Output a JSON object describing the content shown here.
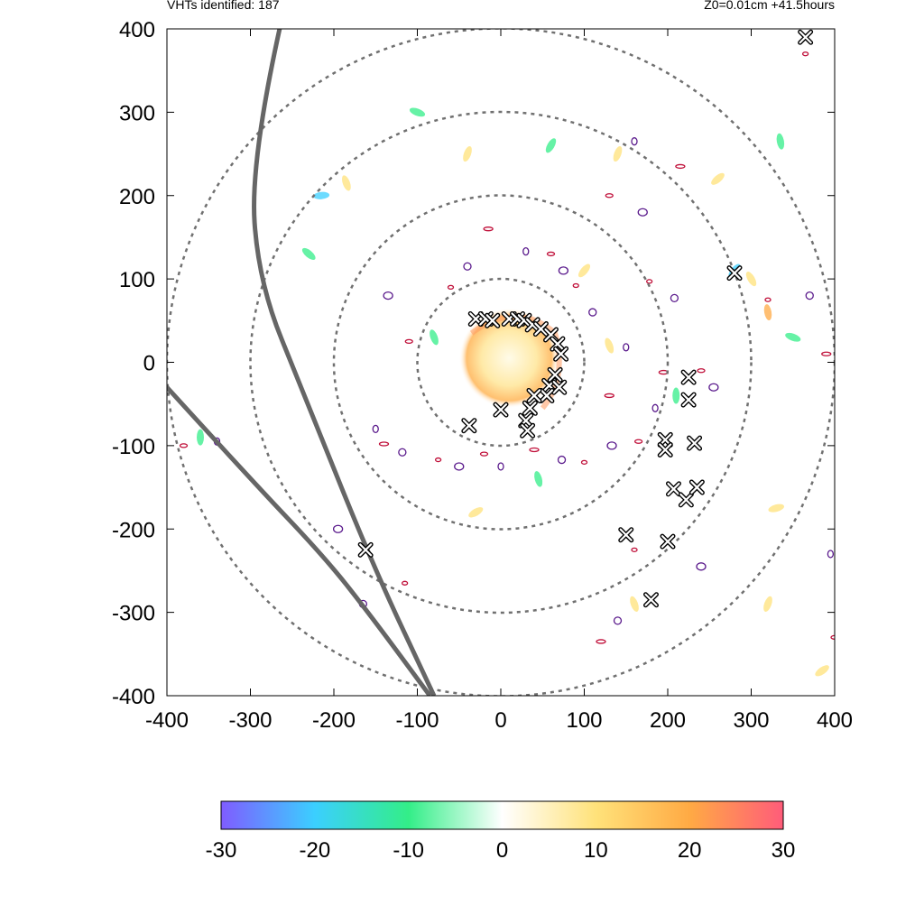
{
  "header": {
    "left_text": "VHTs identified: 187",
    "right_text": "Z0=0.01cm  +41.5hours"
  },
  "chart_data": {
    "type": "scatter",
    "title": "",
    "xlabel": "",
    "ylabel": "",
    "xlim": [
      -400,
      400
    ],
    "ylim": [
      -400,
      400
    ],
    "xticks": [
      -400,
      -300,
      -200,
      -100,
      0,
      100,
      200,
      300,
      400
    ],
    "yticks": [
      -400,
      -300,
      -200,
      -100,
      0,
      100,
      200,
      300,
      400
    ],
    "grid": false,
    "range_rings": [
      100,
      200,
      300,
      400
    ],
    "colorbar": {
      "min": -30,
      "max": 30,
      "ticks": [
        -30,
        -20,
        -10,
        0,
        10,
        20,
        30
      ],
      "colors": [
        "#7f5cff",
        "#3bcfff",
        "#33ee88",
        "#ffffff",
        "#ffe27a",
        "#ffaa44",
        "#ff5c7a"
      ]
    },
    "vht_markers": [
      {
        "x": -30,
        "y": 52
      },
      {
        "x": -18,
        "y": 52
      },
      {
        "x": -10,
        "y": 50
      },
      {
        "x": 10,
        "y": 52
      },
      {
        "x": 20,
        "y": 52
      },
      {
        "x": 28,
        "y": 50
      },
      {
        "x": 38,
        "y": 45
      },
      {
        "x": 48,
        "y": 40
      },
      {
        "x": 60,
        "y": 33
      },
      {
        "x": 68,
        "y": 22
      },
      {
        "x": 72,
        "y": 10
      },
      {
        "x": 65,
        "y": -15
      },
      {
        "x": 58,
        "y": -28
      },
      {
        "x": 70,
        "y": -30
      },
      {
        "x": 55,
        "y": -40
      },
      {
        "x": 40,
        "y": -40
      },
      {
        "x": 35,
        "y": -55
      },
      {
        "x": 30,
        "y": -70
      },
      {
        "x": 32,
        "y": -82
      },
      {
        "x": 0,
        "y": -57
      },
      {
        "x": -38,
        "y": -76
      },
      {
        "x": 225,
        "y": -18
      },
      {
        "x": 225,
        "y": -45
      },
      {
        "x": 197,
        "y": -93
      },
      {
        "x": 197,
        "y": -105
      },
      {
        "x": 232,
        "y": -97
      },
      {
        "x": 207,
        "y": -152
      },
      {
        "x": 222,
        "y": -165
      },
      {
        "x": 235,
        "y": -150
      },
      {
        "x": 200,
        "y": -215
      },
      {
        "x": 150,
        "y": -207
      },
      {
        "x": 180,
        "y": -285
      },
      {
        "x": 280,
        "y": 107
      },
      {
        "x": 365,
        "y": 390
      },
      {
        "x": -162,
        "y": -225
      }
    ],
    "contour_blobs": [
      {
        "x": 178,
        "y": 97
      },
      {
        "x": 208,
        "y": 77
      },
      {
        "x": 195,
        "y": -12
      },
      {
        "x": 185,
        "y": -55
      },
      {
        "x": 165,
        "y": -95
      },
      {
        "x": 133,
        "y": -100
      },
      {
        "x": 100,
        "y": -120
      },
      {
        "x": 73,
        "y": -117
      },
      {
        "x": 40,
        "y": -105
      },
      {
        "x": 0,
        "y": -125
      },
      {
        "x": -20,
        "y": -110
      },
      {
        "x": -50,
        "y": -125
      },
      {
        "x": -75,
        "y": -117
      },
      {
        "x": -118,
        "y": -108
      },
      {
        "x": -140,
        "y": -98
      },
      {
        "x": -150,
        "y": -80
      },
      {
        "x": -110,
        "y": 25
      },
      {
        "x": -135,
        "y": 80
      },
      {
        "x": -60,
        "y": 90
      },
      {
        "x": -40,
        "y": 115
      },
      {
        "x": -15,
        "y": 160
      },
      {
        "x": 30,
        "y": 133
      },
      {
        "x": 60,
        "y": 130
      },
      {
        "x": 75,
        "y": 110
      },
      {
        "x": 90,
        "y": 92
      },
      {
        "x": 110,
        "y": 60
      },
      {
        "x": 130,
        "y": -40
      },
      {
        "x": 150,
        "y": 18
      },
      {
        "x": 240,
        "y": -10
      },
      {
        "x": 255,
        "y": -30
      },
      {
        "x": 320,
        "y": 75
      },
      {
        "x": 370,
        "y": 80
      },
      {
        "x": 390,
        "y": 10
      },
      {
        "x": 395,
        "y": -230
      },
      {
        "x": 400,
        "y": -330
      },
      {
        "x": 240,
        "y": -245
      },
      {
        "x": 160,
        "y": -225
      },
      {
        "x": 140,
        "y": -310
      },
      {
        "x": 120,
        "y": -335
      },
      {
        "x": -340,
        "y": -95
      },
      {
        "x": -380,
        "y": -100
      },
      {
        "x": -195,
        "y": -200
      },
      {
        "x": -115,
        "y": -265
      },
      {
        "x": -165,
        "y": -290
      },
      {
        "x": 215,
        "y": 235
      },
      {
        "x": 160,
        "y": 265
      },
      {
        "x": 130,
        "y": 200
      },
      {
        "x": 170,
        "y": 180
      },
      {
        "x": 365,
        "y": 370
      }
    ],
    "color_patches": [
      {
        "x": 280,
        "y": 110,
        "v": -20
      },
      {
        "x": 300,
        "y": 100,
        "v": 15
      },
      {
        "x": 320,
        "y": 60,
        "v": 20
      },
      {
        "x": 350,
        "y": 30,
        "v": -12
      },
      {
        "x": -215,
        "y": 200,
        "v": -15
      },
      {
        "x": -185,
        "y": 215,
        "v": 12
      },
      {
        "x": -100,
        "y": 300,
        "v": -10
      },
      {
        "x": -40,
        "y": 250,
        "v": 10
      },
      {
        "x": 60,
        "y": 260,
        "v": -8
      },
      {
        "x": 140,
        "y": 250,
        "v": 10
      },
      {
        "x": 260,
        "y": 220,
        "v": 8
      },
      {
        "x": 335,
        "y": 265,
        "v": -8
      },
      {
        "x": 210,
        "y": -40,
        "v": -12
      },
      {
        "x": 160,
        "y": -290,
        "v": 15
      },
      {
        "x": 385,
        "y": -370,
        "v": 12
      },
      {
        "x": 330,
        "y": -175,
        "v": 10
      },
      {
        "x": -360,
        "y": -90,
        "v": -10
      },
      {
        "x": 45,
        "y": -140,
        "v": -10
      },
      {
        "x": -30,
        "y": -180,
        "v": 8
      },
      {
        "x": 320,
        "y": -290,
        "v": 8
      },
      {
        "x": -230,
        "y": 130,
        "v": -10
      },
      {
        "x": 130,
        "y": 20,
        "v": 12
      },
      {
        "x": -80,
        "y": 30,
        "v": -8
      },
      {
        "x": 100,
        "y": 110,
        "v": 10
      }
    ],
    "tracks": [
      {
        "points": [
          [
            -265,
            400
          ],
          [
            -300,
            240
          ],
          [
            -290,
            95
          ],
          [
            -235,
            -40
          ],
          [
            -155,
            -240
          ],
          [
            -80,
            -400
          ]
        ]
      },
      {
        "points": [
          [
            -400,
            -30
          ],
          [
            -300,
            -140
          ],
          [
            -210,
            -235
          ],
          [
            -155,
            -305
          ],
          [
            -85,
            -400
          ]
        ]
      }
    ]
  }
}
